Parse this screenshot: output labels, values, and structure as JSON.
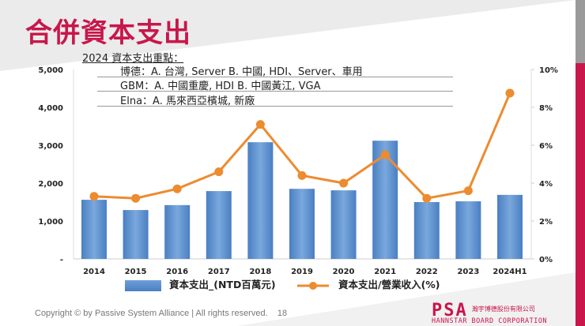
{
  "title": "合併資本支出",
  "notes": {
    "heading": "2024 資本支出重點：",
    "lines": [
      "博德：A. 台灣, Server      B. 中國, HDI、Server、車用",
      "GBM：A. 中國重慶, HDI   B. 中國黃江, VGA",
      "Elna：A. 馬來西亞檳城, 新廠"
    ]
  },
  "chart_data": {
    "type": "bar+line",
    "categories": [
      "2014",
      "2015",
      "2016",
      "2017",
      "2018",
      "2019",
      "2020",
      "2021",
      "2022",
      "2023",
      "2024H1"
    ],
    "series": [
      {
        "name": "資本支出_(NTD百萬元)",
        "type": "bar",
        "axis": "left",
        "color": "#5b8fcf",
        "values": [
          1560,
          1290,
          1420,
          1790,
          3080,
          1850,
          1810,
          3120,
          1500,
          1520,
          1690
        ]
      },
      {
        "name": "資本支出/營業收入(%)",
        "type": "line",
        "axis": "right",
        "color": "#ed8b2f",
        "values": [
          3.3,
          3.2,
          3.7,
          4.6,
          7.1,
          4.4,
          4.0,
          5.5,
          3.2,
          3.6,
          8.75
        ]
      }
    ],
    "y_left": {
      "range": [
        0,
        5000
      ],
      "ticks": [
        "-",
        "1,000",
        "2,000",
        "3,000",
        "4,000",
        "5,000"
      ]
    },
    "y_right": {
      "range": [
        0,
        10
      ],
      "ticks": [
        "0%",
        "2%",
        "4%",
        "6%",
        "8%",
        "10%"
      ]
    },
    "legend_position": "bottom",
    "grid": false
  },
  "footer": {
    "copyright": "Copyright © by Passive System Alliance | All rights reserved.",
    "page": "18"
  },
  "logo": {
    "mark": "PSA",
    "name_zh": "瀚宇博德股份有限公司",
    "name_en": "HANNSTAR BOARD CORPORATION"
  },
  "colors": {
    "title": "#c8174a",
    "bar": "#5b8fcf",
    "line": "#ed8b2f"
  }
}
